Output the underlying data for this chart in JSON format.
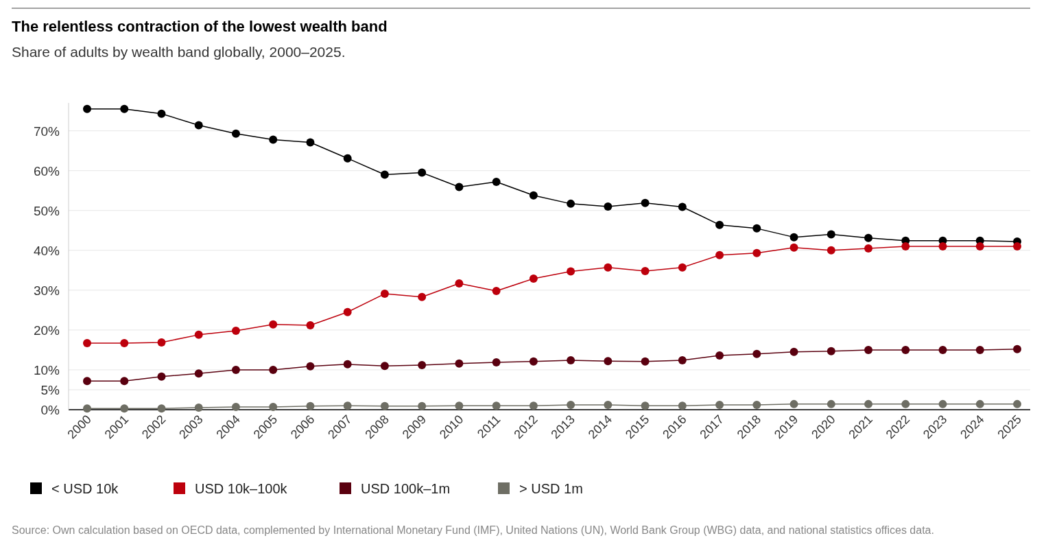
{
  "chart_data": {
    "type": "line",
    "title": "The relentless contraction of the lowest wealth band",
    "subtitle": "Share of adults by wealth band globally, 2000–2025.",
    "categories": [
      "2000",
      "2001",
      "2002",
      "2003",
      "2004",
      "2005",
      "2006",
      "2007",
      "2008",
      "2009",
      "2010",
      "2011",
      "2012",
      "2013",
      "2014",
      "2015",
      "2016",
      "2017",
      "2018",
      "2019",
      "2020",
      "2021",
      "2022",
      "2023",
      "2024",
      "2025"
    ],
    "series": [
      {
        "name": "< USD 10k",
        "color": "#000000",
        "values": [
          75.5,
          75.5,
          74.3,
          71.4,
          69.3,
          67.8,
          67.1,
          63.1,
          59.0,
          59.5,
          55.9,
          57.2,
          53.8,
          51.7,
          51.0,
          51.9,
          50.9,
          46.4,
          45.5,
          43.3,
          44.0,
          43.1,
          42.4,
          42.4,
          42.4,
          42.2
        ]
      },
      {
        "name": "USD 10k–100k",
        "color": "#bd000c",
        "values": [
          16.7,
          16.7,
          16.9,
          18.8,
          19.8,
          21.4,
          21.2,
          24.5,
          29.1,
          28.3,
          31.7,
          29.8,
          32.9,
          34.7,
          35.7,
          34.8,
          35.7,
          38.8,
          39.3,
          40.7,
          40.0,
          40.5,
          41.0,
          41.0,
          41.0,
          41.0
        ]
      },
      {
        "name": "USD 100k–1m",
        "color": "#5a000f",
        "values": [
          7.2,
          7.2,
          8.3,
          9.1,
          10.0,
          10.0,
          10.9,
          11.4,
          11.0,
          11.2,
          11.6,
          11.9,
          12.1,
          12.4,
          12.2,
          12.1,
          12.4,
          13.6,
          14.0,
          14.5,
          14.7,
          15.0,
          15.0,
          15.0,
          15.0,
          15.2
        ]
      },
      {
        "name": "> USD 1m",
        "color": "#6e6e64",
        "values": [
          0.3,
          0.3,
          0.3,
          0.5,
          0.7,
          0.7,
          0.9,
          1.0,
          0.9,
          0.9,
          1.0,
          1.0,
          1.0,
          1.2,
          1.2,
          1.0,
          1.0,
          1.2,
          1.2,
          1.4,
          1.4,
          1.4,
          1.4,
          1.4,
          1.4,
          1.4
        ]
      }
    ],
    "ylim": [
      0,
      77
    ],
    "yticks": [
      {
        "value": 0,
        "label": "0%"
      },
      {
        "value": 5,
        "label": "5%"
      },
      {
        "value": 10,
        "label": "10%"
      },
      {
        "value": 20,
        "label": "20%"
      },
      {
        "value": 30,
        "label": "30%"
      },
      {
        "value": 40,
        "label": "40%"
      },
      {
        "value": 50,
        "label": "50%"
      },
      {
        "value": 60,
        "label": "60%"
      },
      {
        "value": 70,
        "label": "70%"
      }
    ],
    "grid": "y",
    "legend": "bottom",
    "marker": "circle",
    "line_style": "solid",
    "annotations": [
      "Source: Own calculation based on OECD data, complemented by International Monetary Fund (IMF), United Nations (UN), World Bank Group (WBG) data, and national statistics offices data."
    ]
  }
}
